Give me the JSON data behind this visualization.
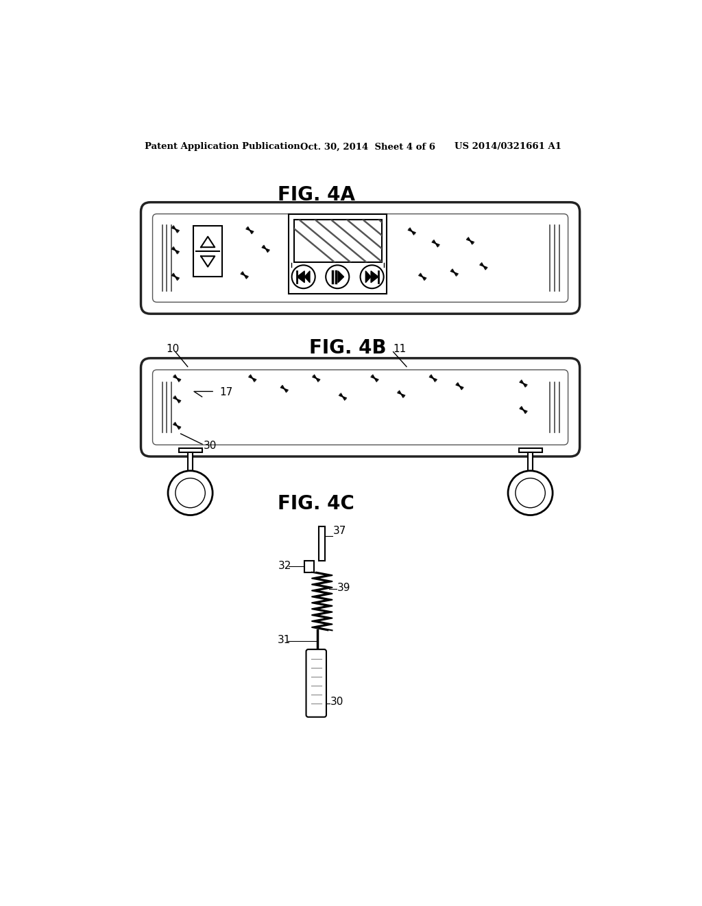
{
  "bg_color": "#ffffff",
  "header_left": "Patent Application Publication",
  "header_mid": "Oct. 30, 2014  Sheet 4 of 6",
  "header_right": "US 2014/0321661 A1",
  "fig4a_label": "FIG. 4A",
  "fig4b_label": "FIG. 4B",
  "fig4c_label": "FIG. 4C",
  "label_10": "10",
  "label_11": "11",
  "label_17": "17",
  "label_30": "30",
  "label_31": "31",
  "label_32": "32",
  "label_37": "37",
  "label_39": "39"
}
